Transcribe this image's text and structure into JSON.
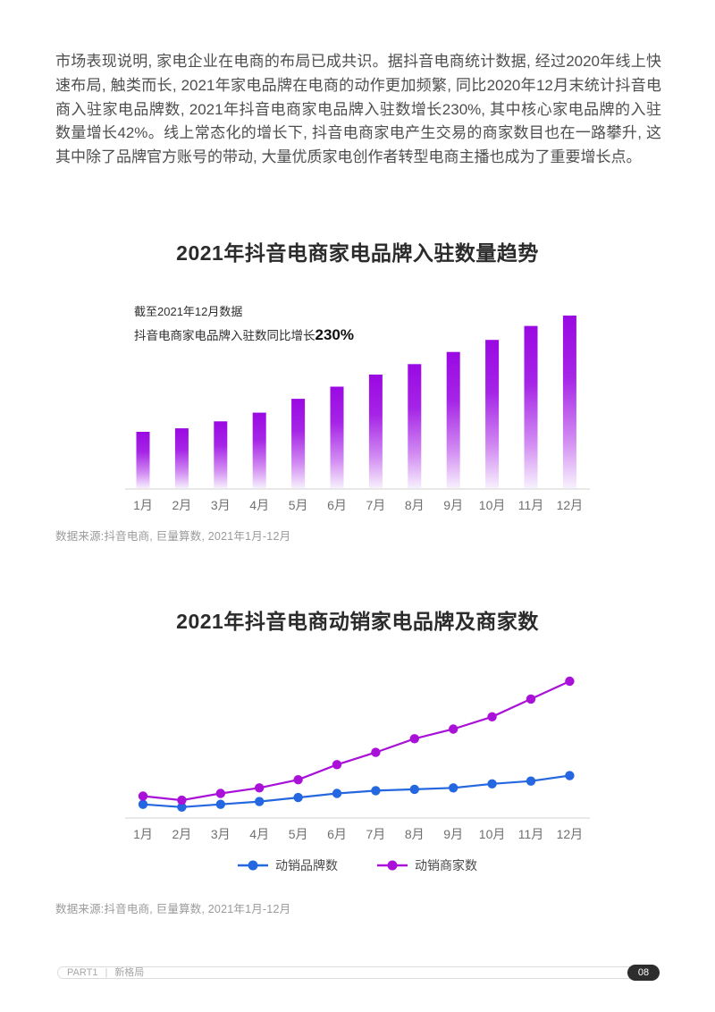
{
  "intro": {
    "text": "市场表现说明, 家电企业在电商的布局已成共识。据抖音电商统计数据, 经过2020年线上快速布局, 触类而长, 2021年家电品牌在电商的动作更加频繁, 同比2020年12月末统计抖音电商入驻家电品牌数, 2021年抖音电商家电品牌入驻数增长230%, 其中核心家电品牌的入驻数量增长42%。线上常态化的增长下, 抖音电商家电产生交易的商家数目也在一路攀升, 这其中除了品牌官方账号的带动, 大量优质家电创作者转型电商主播也成为了重要增长点。"
  },
  "chart_data": [
    {
      "type": "bar",
      "title": "2021年抖音电商家电品牌入驻数量趋势",
      "categories": [
        "1月",
        "2月",
        "3月",
        "4月",
        "5月",
        "6月",
        "7月",
        "8月",
        "9月",
        "10月",
        "11月",
        "12月"
      ],
      "values": [
        33,
        35,
        39,
        44,
        52,
        59,
        66,
        72,
        79,
        86,
        94,
        100
      ],
      "value_units": "relative index (12月=100); chart shows no numeric y-axis",
      "ylim": [
        0,
        105
      ],
      "grid": false,
      "legend": false,
      "annotation": {
        "line1": "截至2021年12月数据",
        "line2_prefix": "抖音电商家电品牌入驻数同比增长",
        "highlight": "230%"
      },
      "colors": {
        "bar_top": "#9a09e2",
        "bar_mid": "#c97bef",
        "bar_bottom": "#f8f3fd",
        "axis": "#e8e8e8",
        "tick_label": "#707070"
      },
      "source": "数据来源:抖音电商, 巨量算数, 2021年1月-12月"
    },
    {
      "type": "line",
      "title": "2021年抖音电商动销家电品牌及商家数",
      "categories": [
        "1月",
        "2月",
        "3月",
        "4月",
        "5月",
        "6月",
        "7月",
        "8月",
        "9月",
        "10月",
        "11月",
        "12月"
      ],
      "series": [
        {
          "name": "动销品牌数",
          "color": "#2467e0",
          "values": [
            10,
            8,
            10,
            12,
            15,
            18,
            20,
            21,
            22,
            25,
            27,
            31
          ]
        },
        {
          "name": "动销商家数",
          "color": "#a911d8",
          "values": [
            16,
            13,
            18,
            22,
            28,
            39,
            48,
            58,
            65,
            74,
            87,
            100
          ]
        }
      ],
      "value_units": "relative index (动销商家数 12月=100); chart shows no numeric y-axis",
      "ylim": [
        0,
        110
      ],
      "grid": false,
      "legend_position": "bottom",
      "colors": {
        "axis": "#e0e0e0",
        "tick_label": "#707070"
      },
      "source": "数据来源:抖音电商, 巨量算数, 2021年1月-12月"
    }
  ],
  "footer": {
    "part_label": "PART1",
    "separator": "|",
    "section_label": "新格局",
    "page_number": "08"
  }
}
